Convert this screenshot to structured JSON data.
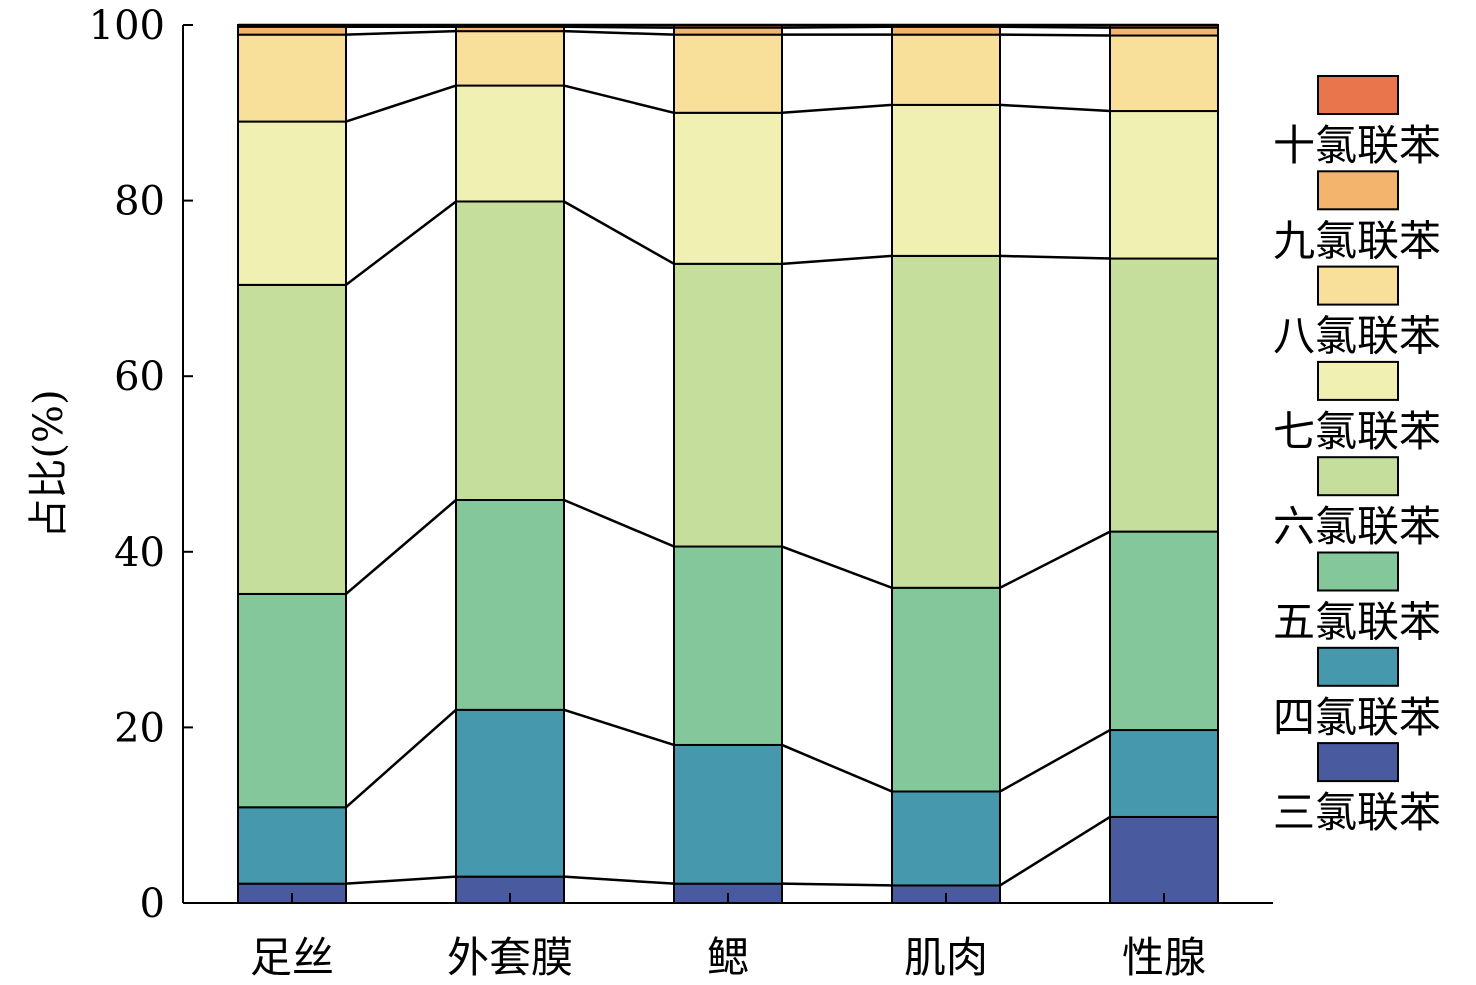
{
  "chart_data": {
    "type": "bar",
    "stacked": true,
    "ylabel": "占比(%)",
    "xlabel": "",
    "ylim": [
      0,
      100
    ],
    "yticks": [
      0,
      20,
      40,
      60,
      80,
      100
    ],
    "grid": false,
    "legend_position": "right",
    "categories": [
      "足丝",
      "外套膜",
      "鳃",
      "肌肉",
      "性腺"
    ],
    "series": [
      {
        "name": "三氯联苯",
        "color": "#4a5a9e",
        "values": [
          2.2,
          3.0,
          2.2,
          2.0,
          9.8
        ]
      },
      {
        "name": "四氯联苯",
        "color": "#4698ad",
        "values": [
          8.7,
          19.0,
          15.8,
          10.7,
          9.9
        ]
      },
      {
        "name": "五氯联苯",
        "color": "#84c79b",
        "values": [
          24.3,
          23.9,
          22.6,
          23.2,
          22.6
        ]
      },
      {
        "name": "六氯联苯",
        "color": "#c6de9b",
        "values": [
          35.2,
          34.0,
          32.2,
          37.8,
          31.1
        ]
      },
      {
        "name": "七氯联苯",
        "color": "#eff0b2",
        "values": [
          18.6,
          13.2,
          17.2,
          17.2,
          16.8
        ]
      },
      {
        "name": "八氯联苯",
        "color": "#f8e09a",
        "values": [
          9.9,
          6.2,
          8.9,
          8.0,
          8.6
        ]
      },
      {
        "name": "九氯联苯",
        "color": "#f3b56e",
        "values": [
          0.9,
          0.5,
          0.8,
          0.9,
          0.9
        ]
      },
      {
        "name": "十氯联苯",
        "color": "#e8754c",
        "values": [
          0.2,
          0.2,
          0.3,
          0.2,
          0.3
        ]
      }
    ]
  }
}
